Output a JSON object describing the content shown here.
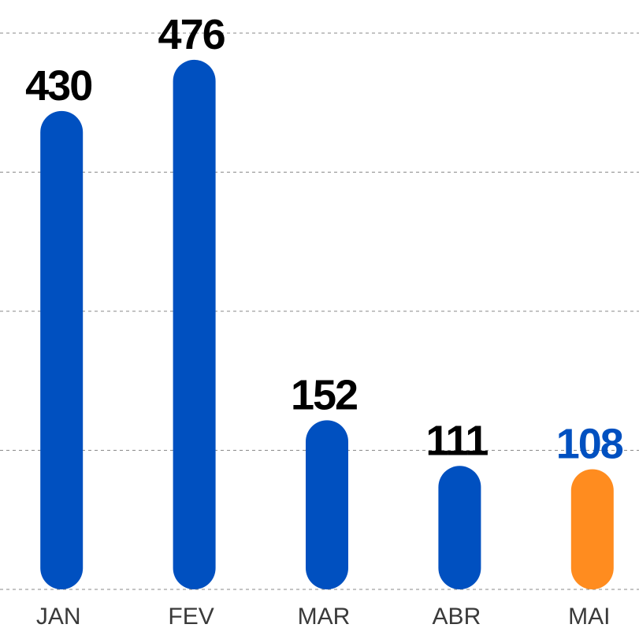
{
  "chart_data": {
    "type": "bar",
    "categories": [
      "JAN",
      "FEV",
      "MAR",
      "ABR",
      "MAI"
    ],
    "values": [
      430,
      476,
      152,
      111,
      108
    ],
    "colors": [
      "#0050c0",
      "#0050c0",
      "#0050c0",
      "#0050c0",
      "#ff8c1f"
    ],
    "value_label_colors": [
      "#000000",
      "#000000",
      "#000000",
      "#000000",
      "#0050c0"
    ],
    "ylim": [
      0,
      500
    ],
    "yticks": [
      0,
      125,
      250,
      375,
      500
    ],
    "grid": true
  }
}
